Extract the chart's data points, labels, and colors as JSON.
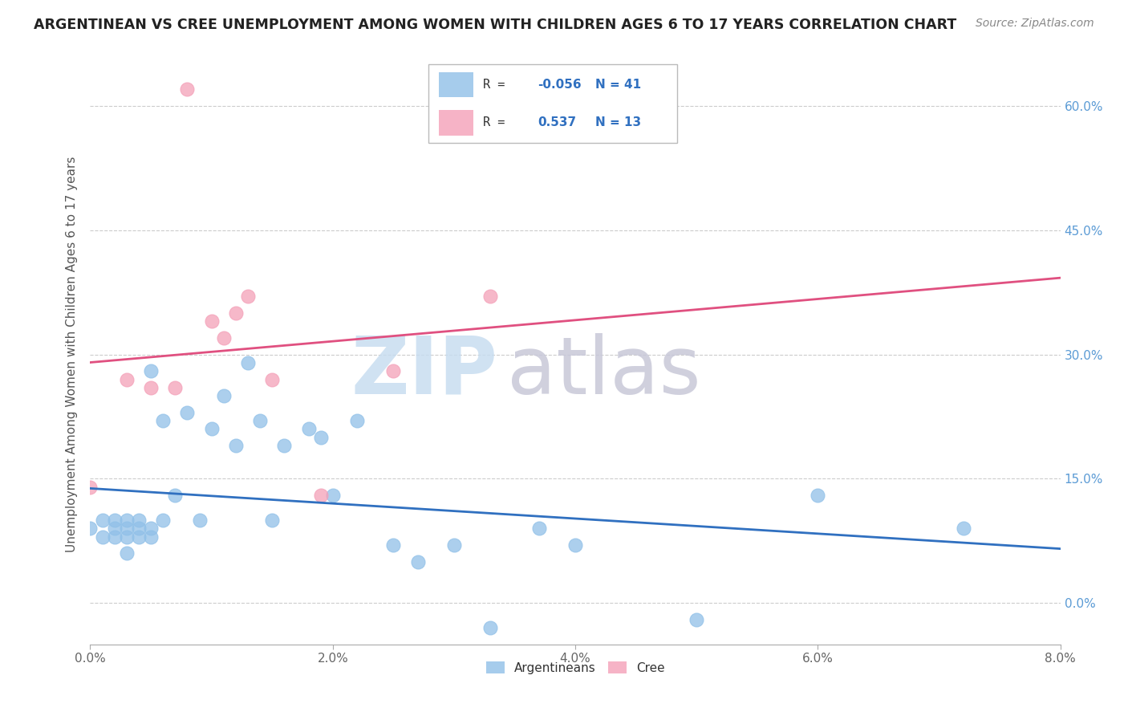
{
  "title": "ARGENTINEAN VS CREE UNEMPLOYMENT AMONG WOMEN WITH CHILDREN AGES 6 TO 17 YEARS CORRELATION CHART",
  "source": "Source: ZipAtlas.com",
  "ylabel": "Unemployment Among Women with Children Ages 6 to 17 years",
  "xlim": [
    0.0,
    0.08
  ],
  "ylim": [
    -0.05,
    0.65
  ],
  "xticks": [
    0.0,
    0.02,
    0.04,
    0.06,
    0.08
  ],
  "xticklabels": [
    "0.0%",
    "2.0%",
    "4.0%",
    "6.0%",
    "8.0%"
  ],
  "yticks": [
    0.0,
    0.15,
    0.3,
    0.45,
    0.6
  ],
  "yticklabels": [
    "0.0%",
    "15.0%",
    "30.0%",
    "45.0%",
    "60.0%"
  ],
  "r_argentinean": "-0.056",
  "n_argentinean": "41",
  "r_cree": "0.537",
  "n_cree": "13",
  "argentinean_color": "#90c0e8",
  "cree_color": "#f4a0b8",
  "argentinean_line_color": "#3070c0",
  "cree_line_color": "#e05080",
  "legend_r_color": "#3070c0",
  "watermark_zip_color": "#c8ddf0",
  "watermark_atlas_color": "#c8c8d8",
  "background_color": "#ffffff",
  "grid_color": "#cccccc",
  "right_ytick_color": "#5b9bd5",
  "argentinean_x": [
    0.0,
    0.001,
    0.001,
    0.002,
    0.002,
    0.002,
    0.003,
    0.003,
    0.003,
    0.003,
    0.004,
    0.004,
    0.004,
    0.005,
    0.005,
    0.005,
    0.006,
    0.006,
    0.007,
    0.008,
    0.009,
    0.01,
    0.011,
    0.012,
    0.013,
    0.014,
    0.015,
    0.016,
    0.018,
    0.019,
    0.02,
    0.022,
    0.025,
    0.027,
    0.03,
    0.033,
    0.037,
    0.04,
    0.05,
    0.06,
    0.072
  ],
  "argentinean_y": [
    0.09,
    0.08,
    0.1,
    0.09,
    0.08,
    0.1,
    0.09,
    0.1,
    0.06,
    0.08,
    0.08,
    0.09,
    0.1,
    0.08,
    0.09,
    0.28,
    0.1,
    0.22,
    0.13,
    0.23,
    0.1,
    0.21,
    0.25,
    0.19,
    0.29,
    0.22,
    0.1,
    0.19,
    0.21,
    0.2,
    0.13,
    0.22,
    0.07,
    0.05,
    0.07,
    -0.03,
    0.09,
    0.07,
    -0.02,
    0.13,
    0.09
  ],
  "cree_x": [
    0.0,
    0.003,
    0.005,
    0.007,
    0.008,
    0.01,
    0.011,
    0.012,
    0.013,
    0.015,
    0.019,
    0.025,
    0.033
  ],
  "cree_y": [
    0.14,
    0.27,
    0.26,
    0.26,
    0.62,
    0.34,
    0.32,
    0.35,
    0.37,
    0.27,
    0.13,
    0.28,
    0.37
  ]
}
